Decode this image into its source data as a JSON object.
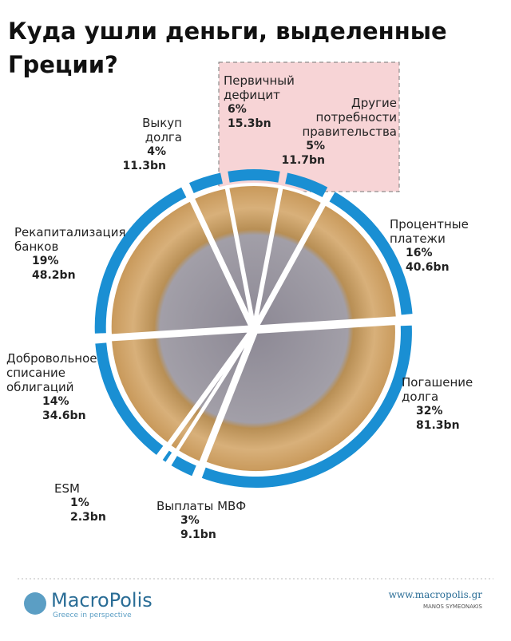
{
  "chart_data": {
    "type": "pie",
    "title": "Куда ушли деньги, выделенные\nГреции?",
    "categories": [
      "Первичный\nдефицит",
      "Другие\nпотребности\nправительства",
      "Процентные\nплатежи",
      "Погашение\nдолга",
      "Выплаты МВФ",
      "ESM",
      "Добровольное\nсписание\nоблигаций",
      "Рекапитализация\nбанков",
      "Выкуп\nдолга"
    ],
    "values": [
      6,
      5,
      16,
      32,
      3,
      1,
      14,
      19,
      4
    ],
    "value_labels": [
      "6%",
      "5%",
      "16%",
      "32%",
      "3%",
      "1%",
      "14%",
      "19%",
      "4%"
    ],
    "amounts": [
      15.3,
      11.7,
      40.6,
      81.3,
      9.1,
      2.3,
      34.6,
      48.2,
      11.3
    ],
    "amount_labels": [
      "15.3bn",
      "11.7bn",
      "40.6bn",
      "81.3bn",
      "9.1bn",
      "2.3bn",
      "34.6bn",
      "48.2bn",
      "11.3bn"
    ],
    "color": "#1a8fd3"
  },
  "footer": {
    "brand": "MacroPolis",
    "tagline": "Greece in perspective",
    "url": "www.macropolis.gr",
    "credit": "MANOS SYMEONAKIS"
  }
}
